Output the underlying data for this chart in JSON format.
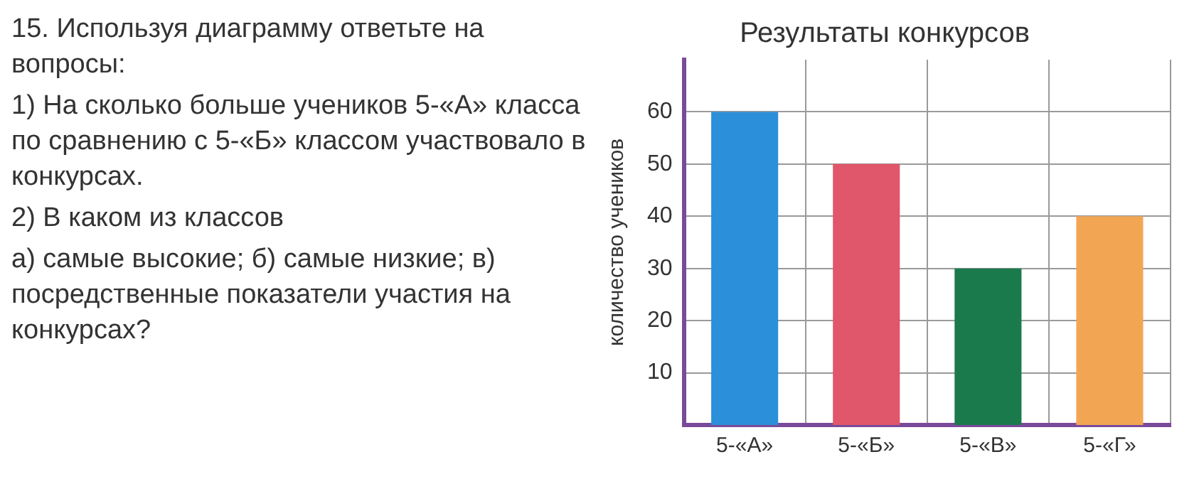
{
  "chart_data": {
    "type": "bar",
    "title": "Результаты конкурсов",
    "ylabel": "количество учеников",
    "categories": [
      "5-«А»",
      "5-«Б»",
      "5-«В»",
      "5-«Г»"
    ],
    "values": [
      60,
      50,
      30,
      40
    ],
    "colors": [
      "#2b8fd9",
      "#e0566a",
      "#1b7a4c",
      "#f2a654"
    ],
    "ylim": [
      0,
      70
    ],
    "yticks": [
      10,
      20,
      30,
      40,
      50,
      60
    ],
    "grid": true,
    "legend": false,
    "annotations": [
      "15. Используя диаграмму ответьте на вопросы:",
      "1) На сколько больше учеников 5-«А» класса по сравнению с 5-«Б» классом участвовало в конкурсах.",
      "2) В каком из классов",
      "а) самые высокие; б) самые низкие; в) посредственные показатели участия на конкурсах?"
    ]
  }
}
